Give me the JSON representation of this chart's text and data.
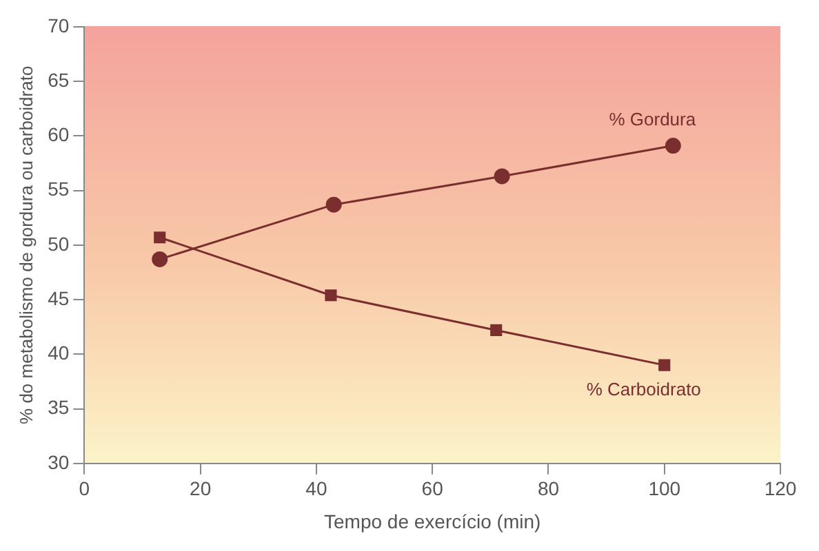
{
  "chart_data": {
    "type": "line",
    "xlabel": "Tempo de exercício (min)",
    "ylabel": "% do metabolismo de gordura ou carboidrato",
    "xlim": [
      0,
      120
    ],
    "xticks": [
      0,
      20,
      40,
      60,
      80,
      100,
      120
    ],
    "ylim": [
      30,
      70
    ],
    "yticks": [
      30,
      35,
      40,
      45,
      50,
      55,
      60,
      65,
      70
    ],
    "grid": false,
    "legend": false,
    "series": [
      {
        "name": "% Gordura",
        "color": "#7a2e2e",
        "marker": "circle",
        "x": [
          13,
          43,
          72,
          101.5
        ],
        "values": [
          48.7,
          53.7,
          56.3,
          59.1
        ]
      },
      {
        "name": "% Carboidrato",
        "color": "#7a2e2e",
        "marker": "square",
        "x": [
          13,
          42.5,
          71,
          100
        ],
        "values": [
          50.7,
          45.4,
          42.2,
          39
        ]
      }
    ]
  }
}
